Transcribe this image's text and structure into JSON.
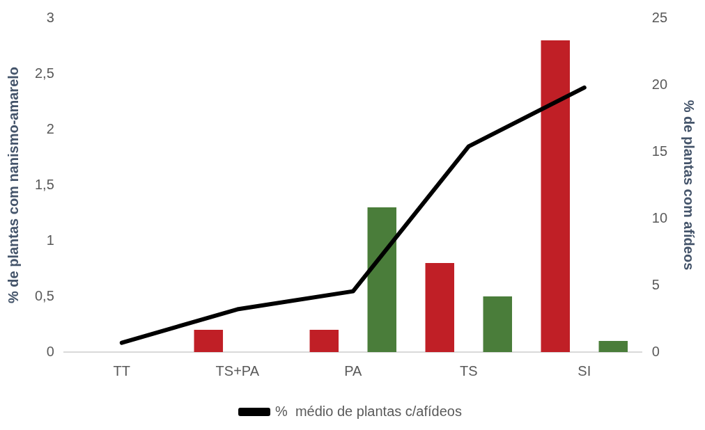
{
  "chart_data": {
    "type": "bar",
    "categories": [
      "TT",
      "TS+PA",
      "PA",
      "TS",
      "SI"
    ],
    "ylabel": "% de plantas com nanismo-amarelo",
    "y2label": "% de plantas com afídeos",
    "ylim": [
      0,
      3
    ],
    "yticks": [
      0,
      {
        "value": 0.5,
        "label": "0,5"
      },
      1,
      {
        "value": 1.5,
        "label": "1,5"
      },
      2,
      {
        "value": 2.5,
        "label": "2,5"
      },
      3
    ],
    "y2lim": [
      0,
      25
    ],
    "y2ticks": [
      0,
      5,
      10,
      15,
      20,
      25
    ],
    "series": [
      {
        "color": "#c01f26",
        "values": [
          0,
          0.2,
          0.2,
          0.8,
          2.8
        ]
      },
      {
        "color": "#4a7d3a",
        "values": [
          0,
          0,
          1.3,
          0.5,
          0.1
        ]
      },
      {
        "name": "%  médio de plantas c/afídeos",
        "type": "line",
        "axis": "y2",
        "color": "#000000",
        "values": [
          0.7,
          3.2,
          4.55,
          15.4,
          19.8
        ]
      }
    ],
    "grid": false,
    "legend": "bottom",
    "marker": "none"
  }
}
